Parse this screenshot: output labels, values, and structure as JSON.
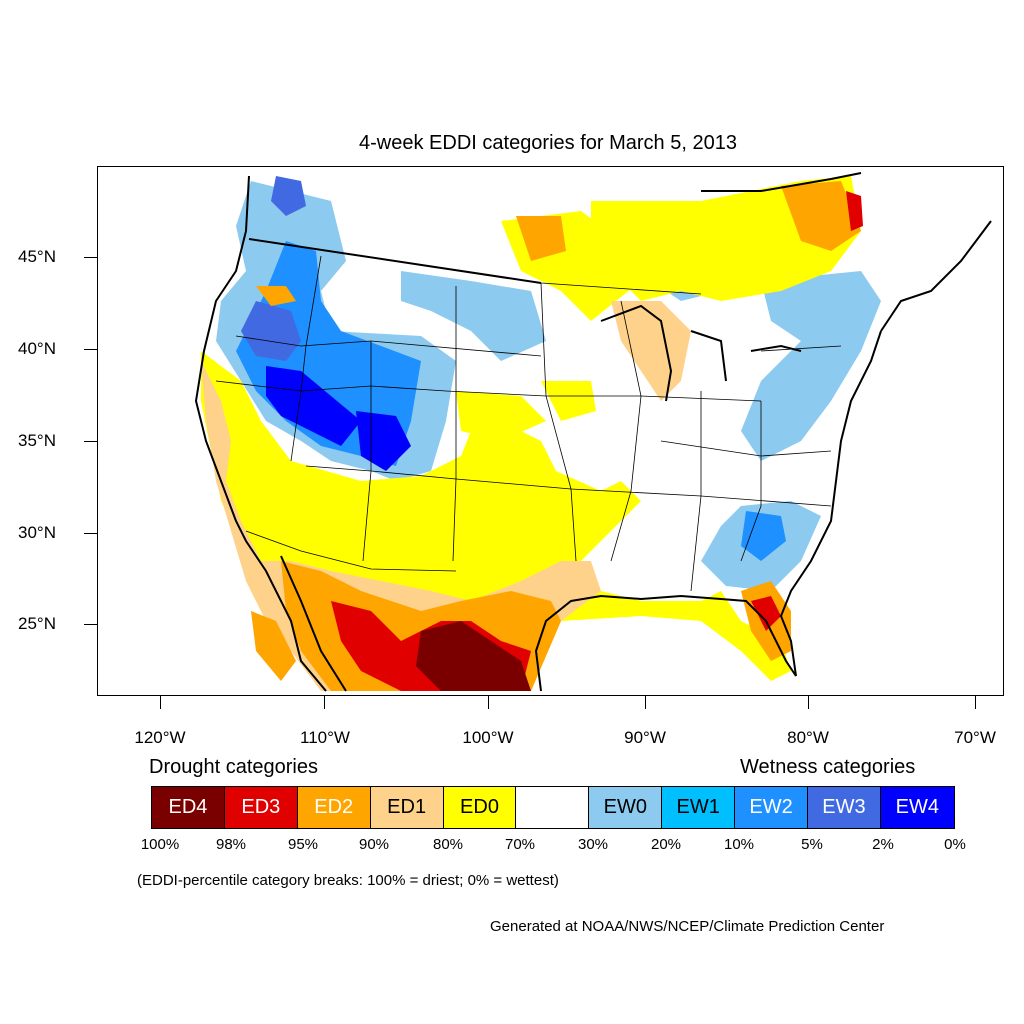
{
  "title": "4-week EDDI categories for March 5, 2013",
  "latitude_labels": [
    "45°N",
    "40°N",
    "35°N",
    "30°N",
    "25°N"
  ],
  "longitude_labels": [
    "120°W",
    "110°W",
    "100°W",
    "90°W",
    "80°W",
    "70°W"
  ],
  "legend": {
    "drought_heading": "Drought categories",
    "wetness_heading": "Wetness categories",
    "categories": [
      {
        "label": "ED4",
        "color": "#7a0000",
        "text_color": "#ffffff"
      },
      {
        "label": "ED3",
        "color": "#e00000",
        "text_color": "#ffffff"
      },
      {
        "label": "ED2",
        "color": "#ffa500",
        "text_color": "#ffffff"
      },
      {
        "label": "ED1",
        "color": "#ffd28c",
        "text_color": "#000000"
      },
      {
        "label": "ED0",
        "color": "#ffff00",
        "text_color": "#000000"
      },
      {
        "label": "",
        "color": "#ffffff",
        "text_color": "#000000"
      },
      {
        "label": "EW0",
        "color": "#8ccaf0",
        "text_color": "#000000"
      },
      {
        "label": "EW1",
        "color": "#00bfff",
        "text_color": "#000000"
      },
      {
        "label": "EW2",
        "color": "#1e90ff",
        "text_color": "#ffffff"
      },
      {
        "label": "EW3",
        "color": "#4169e1",
        "text_color": "#ffffff"
      },
      {
        "label": "EW4",
        "color": "#0000ff",
        "text_color": "#ffffff"
      }
    ],
    "percentiles": [
      "100%",
      "98%",
      "95%",
      "90%",
      "80%",
      "70%",
      "30%",
      "20%",
      "10%",
      "5%",
      "2%",
      "0%"
    ]
  },
  "note": "(EDDI-percentile category breaks: 100% = driest; 0% = wettest)",
  "credit": "Generated at NOAA/NWS/NCEP/Climate Prediction Center"
}
